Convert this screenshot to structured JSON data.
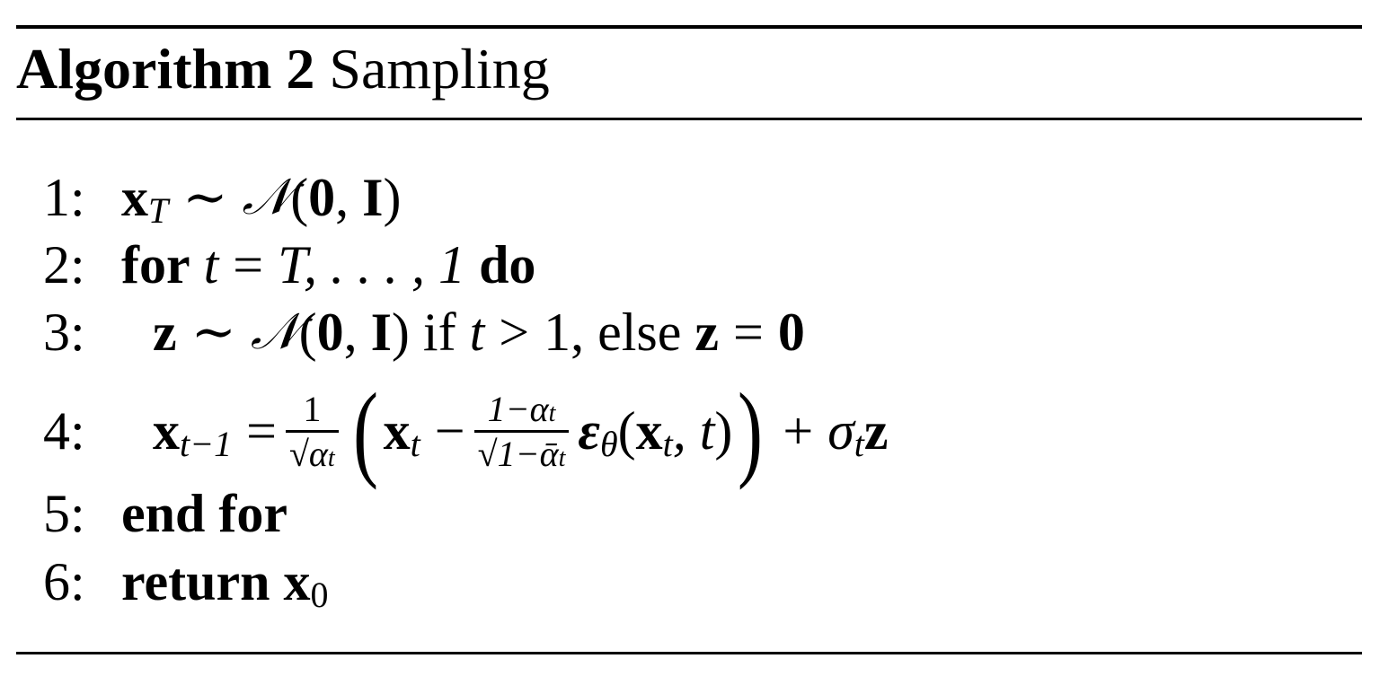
{
  "algorithm": {
    "label": "Algorithm 2",
    "name": "Sampling",
    "lines": [
      {
        "num": "1:",
        "tokens": [
          "x",
          "T",
          "∼",
          "𝒩",
          "(",
          "0",
          ",",
          "I",
          ")"
        ]
      },
      {
        "num": "2:",
        "tokens": [
          "for",
          "t",
          "=",
          "T, . . . , 1",
          "do"
        ]
      },
      {
        "num": "3:",
        "tokens": [
          "z",
          "∼",
          "𝒩",
          "(",
          "0",
          ",",
          "I",
          ")",
          "if",
          "t",
          ">",
          "1, else",
          "z",
          "=",
          "0"
        ]
      },
      {
        "num": "4:",
        "tokens": [
          "x",
          "t−1",
          "=",
          "1",
          "√α",
          "t",
          "(",
          "x",
          "t",
          "−",
          "1−α",
          "t",
          "√1−ᾱ",
          "t",
          "ε",
          "θ",
          "(",
          "x",
          "t",
          ", t",
          ")",
          ")",
          "+",
          "σ",
          "t",
          "z"
        ]
      },
      {
        "num": "5:",
        "tokens": [
          "end for"
        ]
      },
      {
        "num": "6:",
        "tokens": [
          "return",
          "x",
          "0"
        ]
      }
    ]
  }
}
